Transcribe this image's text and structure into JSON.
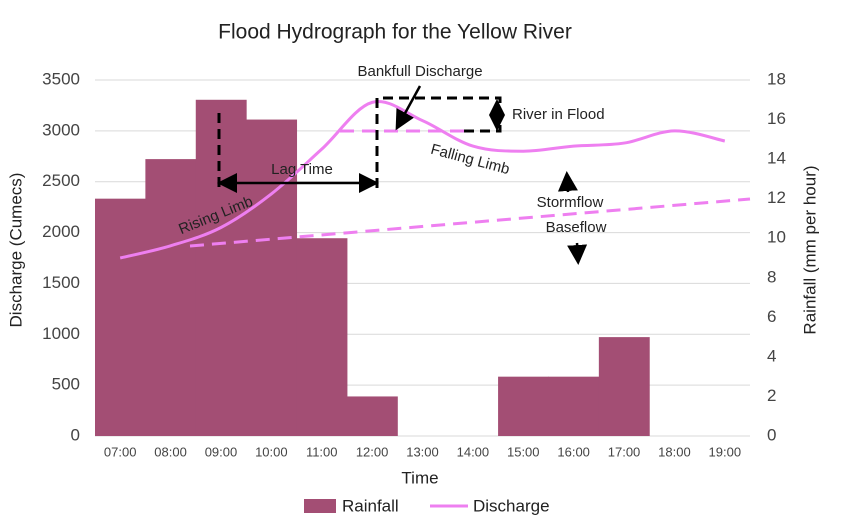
{
  "chart_data": {
    "type": "bar-line",
    "title": "Flood Hydrograph for the Yellow River",
    "x_label": "Time",
    "y_label": "Discharge (Cumecs)",
    "y2_label": "Rainfall (mm per hour)",
    "categories": [
      "07:00",
      "08:00",
      "09:00",
      "10:00",
      "11:00",
      "12:00",
      "13:00",
      "14:00",
      "15:00",
      "16:00",
      "17:00",
      "18:00",
      "19:00"
    ],
    "series": [
      {
        "name": "Rainfall",
        "type": "bar",
        "axis": "y2",
        "color": "#a34e74",
        "values": [
          12,
          14,
          17,
          16,
          10,
          2,
          0,
          0,
          3,
          3,
          5,
          0,
          0
        ]
      },
      {
        "name": "Discharge",
        "type": "line",
        "color": "#ee7ff0",
        "values": [
          1750,
          1870,
          2050,
          2380,
          2820,
          3280,
          3100,
          2850,
          2800,
          2850,
          2880,
          3000,
          2900
        ]
      }
    ],
    "ylim": [
      0,
      3500
    ],
    "yticks": [
      0,
      500,
      1000,
      1500,
      2000,
      2500,
      3000,
      3500
    ],
    "y2lim": [
      0,
      18
    ],
    "y2ticks": [
      0,
      2,
      4,
      6,
      8,
      10,
      12,
      14,
      16,
      18
    ],
    "grid": true,
    "legend": "bottom",
    "annotations": [
      "Bankfull Discharge",
      "River in Flood",
      "Lag Time",
      "Rising Limb",
      "Falling Limb",
      "Stormflow",
      "Baseflow"
    ]
  }
}
